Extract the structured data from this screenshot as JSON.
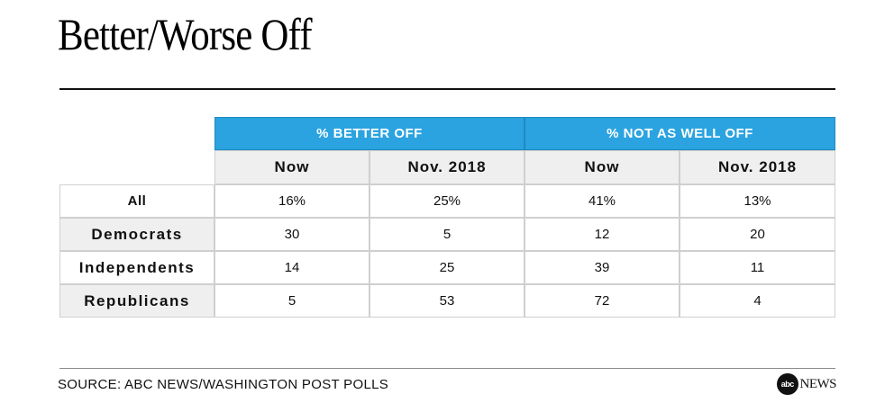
{
  "title": "Better/Worse Off",
  "source": "SOURCE: ABC NEWS/WASHINGTON POST POLLS",
  "logo": {
    "mark": "abc",
    "text": "NEWS"
  },
  "colors": {
    "header_blue": "#2aa3e0",
    "shade": "#efefef"
  },
  "chart_data": {
    "type": "table",
    "groups": [
      "% BETTER OFF",
      "% NOT AS WELL OFF"
    ],
    "columns": [
      "Now",
      "Nov. 2018",
      "Now",
      "Nov. 2018"
    ],
    "rows": [
      {
        "label": "All",
        "values": [
          "16%",
          "25%",
          "41%",
          "13%"
        ]
      },
      {
        "label": "Democrats",
        "values": [
          "30",
          "5",
          "12",
          "20"
        ]
      },
      {
        "label": "Independents",
        "values": [
          "14",
          "25",
          "39",
          "11"
        ]
      },
      {
        "label": "Republicans",
        "values": [
          "5",
          "53",
          "72",
          "4"
        ]
      }
    ]
  }
}
